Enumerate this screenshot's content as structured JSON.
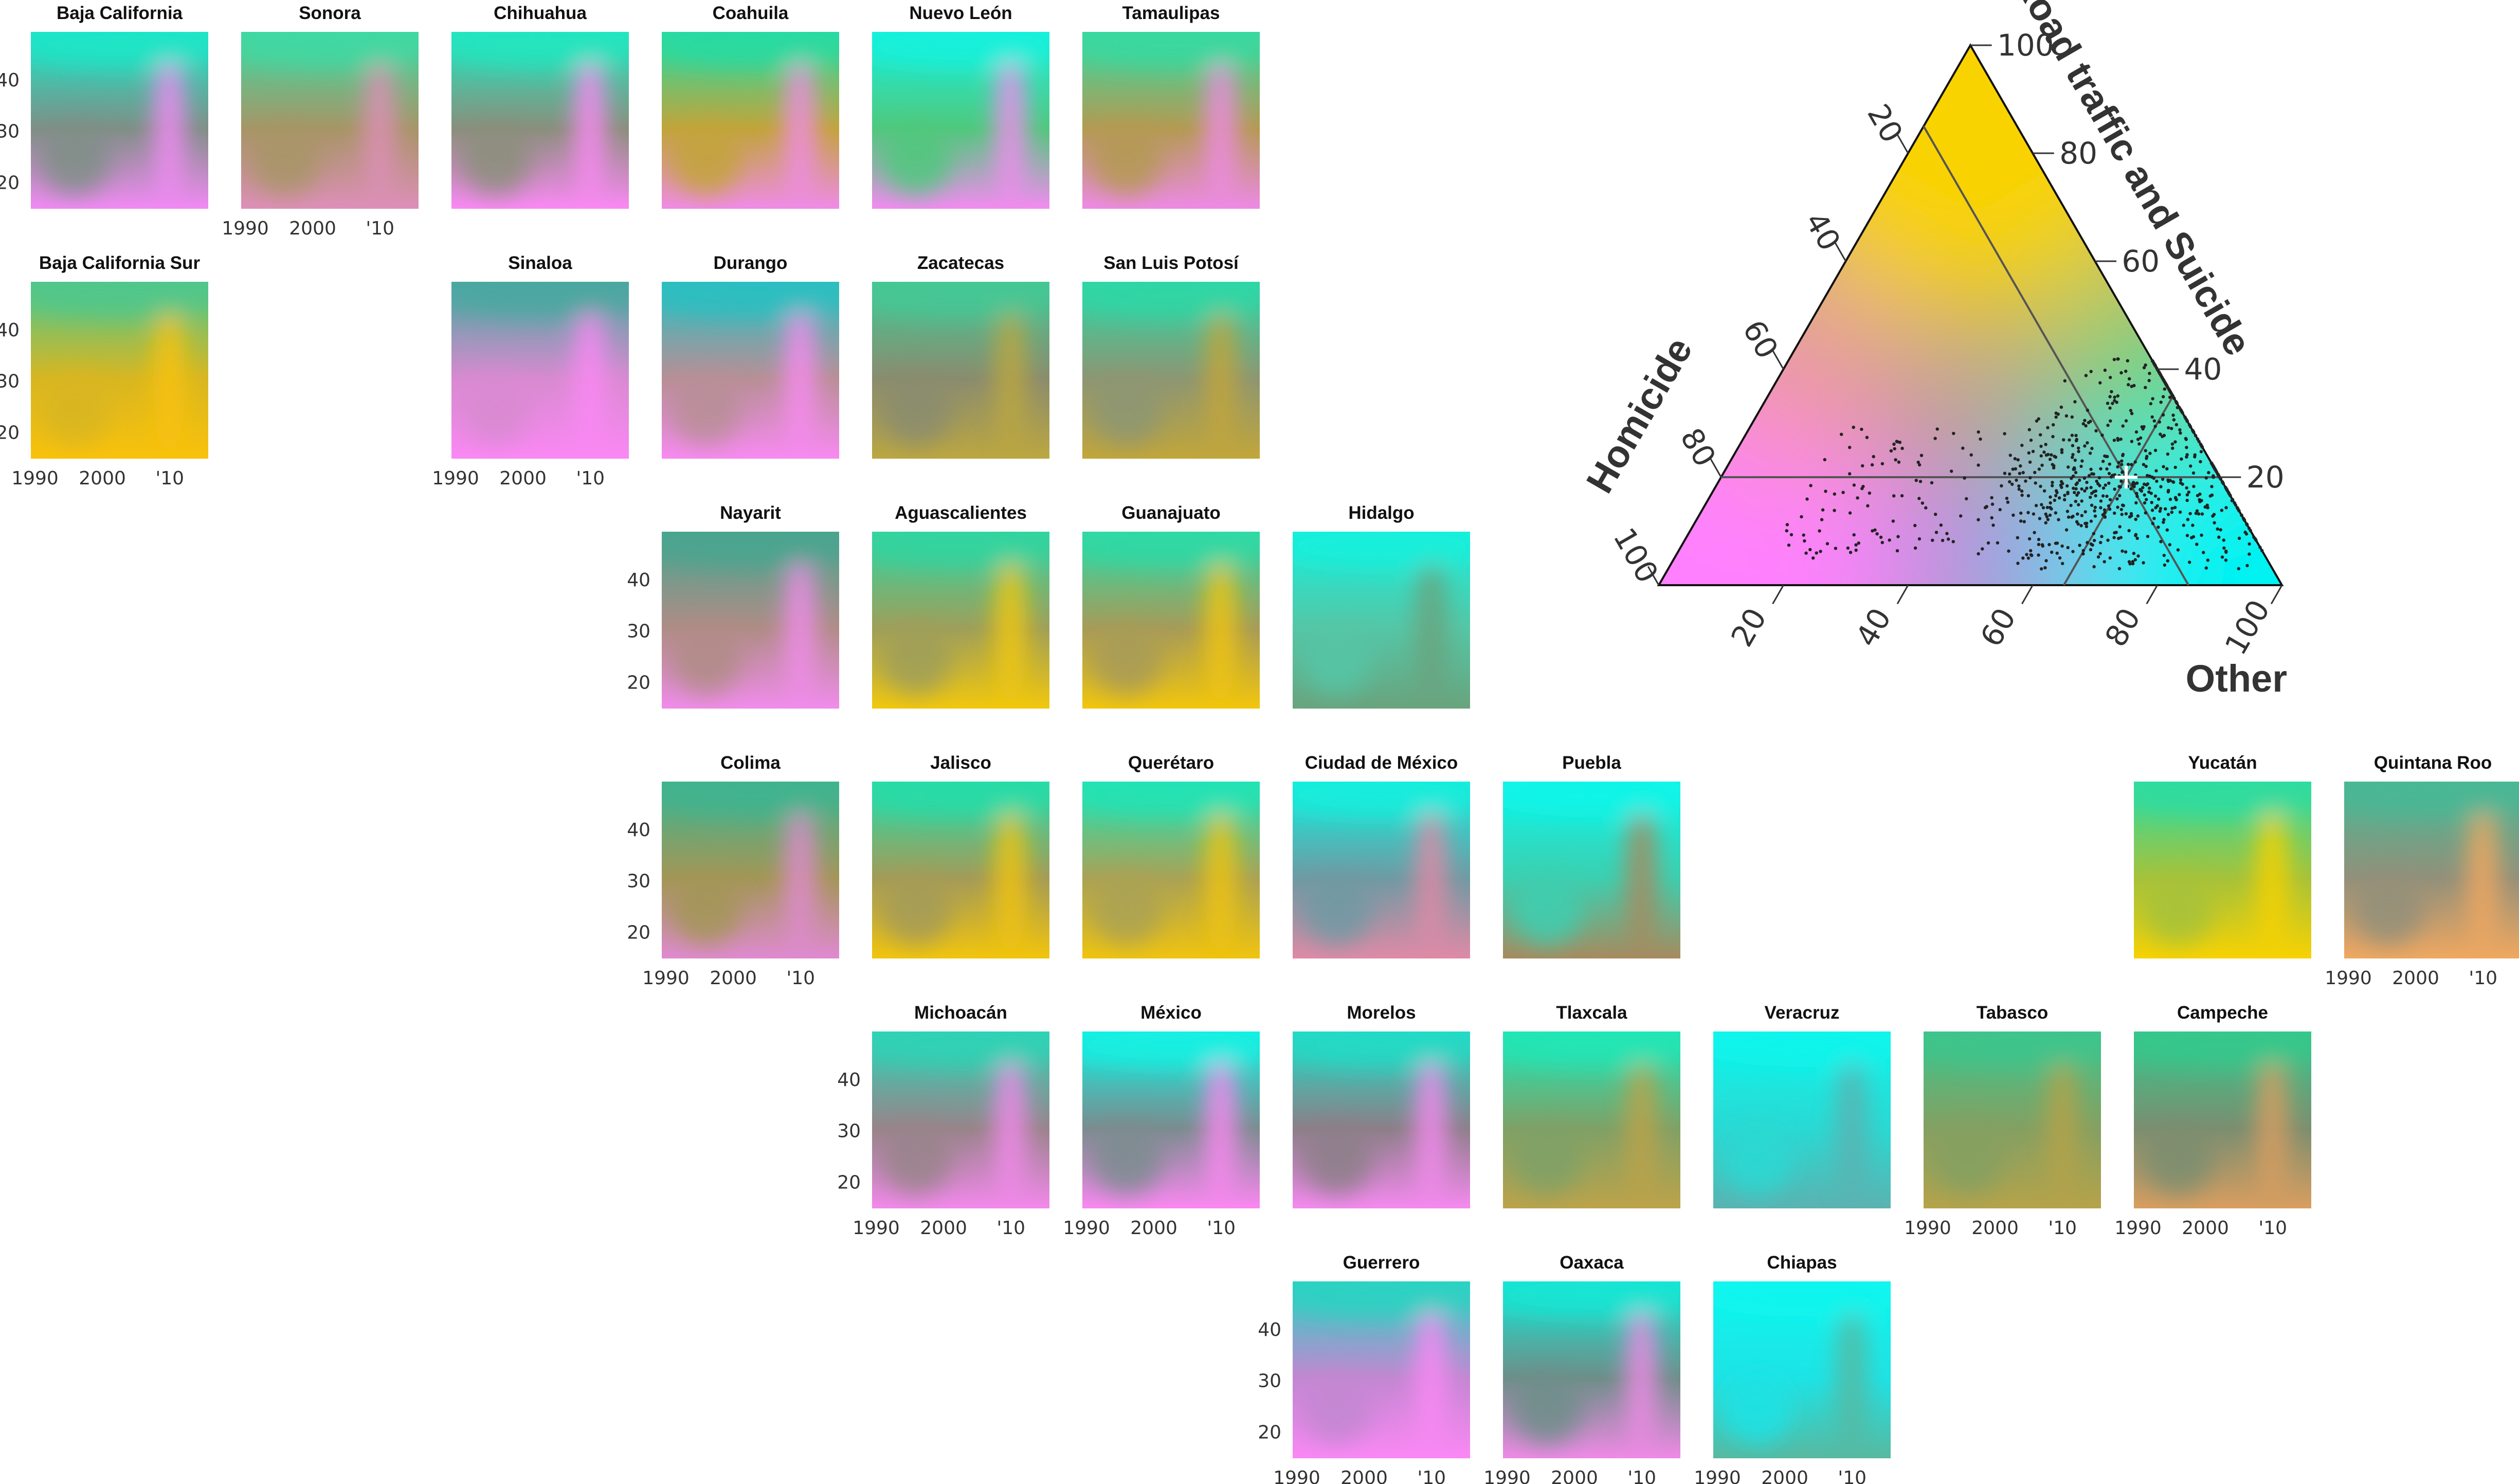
{
  "chart_data": [
    {
      "type": "heatmap",
      "description_of_panels": "Small-multiple tile map of Mexican states; each tile shows a colour field over time (x) and age (y), colour encoding the composition of deaths per the ternary legend.",
      "x_ticks": [
        "1990",
        "2000",
        "'10"
      ],
      "y_ticks": [
        "20",
        "30",
        "40"
      ],
      "xlim": [
        1990,
        2015
      ],
      "ylim": [
        15,
        50
      ],
      "panels": [
        {
          "name": "Baja California",
          "row": 0,
          "col": 0,
          "y_axis": true,
          "x_axis": false,
          "colors": [
            "#1de6c8",
            "#7f8f86",
            "#f28af5"
          ]
        },
        {
          "name": "Sonora",
          "row": 0,
          "col": 1,
          "y_axis": false,
          "x_axis": true,
          "colors": [
            "#3fd9a3",
            "#a79566",
            "#de8fb9"
          ]
        },
        {
          "name": "Chihuahua",
          "row": 0,
          "col": 2,
          "y_axis": false,
          "x_axis": false,
          "colors": [
            "#22e6c0",
            "#8a8f7c",
            "#fb89f5"
          ]
        },
        {
          "name": "Coahuila",
          "row": 0,
          "col": 3,
          "y_axis": false,
          "x_axis": false,
          "colors": [
            "#28dba2",
            "#c2a43a",
            "#f08be8"
          ]
        },
        {
          "name": "Nuevo León",
          "row": 0,
          "col": 4,
          "y_axis": false,
          "x_axis": false,
          "colors": [
            "#17f1dc",
            "#50c87d",
            "#f38bf0"
          ]
        },
        {
          "name": "Tamaulipas",
          "row": 0,
          "col": 5,
          "y_axis": false,
          "x_axis": false,
          "colors": [
            "#38d9a0",
            "#b49a52",
            "#ee8ae6"
          ]
        },
        {
          "name": "Baja California Sur",
          "row": 1,
          "col": 0,
          "y_axis": true,
          "x_axis": true,
          "colors": [
            "#4fc78c",
            "#d8b622",
            "#f9c20c"
          ]
        },
        {
          "name": "Sinaloa",
          "row": 1,
          "col": 2,
          "y_axis": false,
          "x_axis": true,
          "colors": [
            "#4aa8a0",
            "#d88ad0",
            "#fb88f5"
          ]
        },
        {
          "name": "Durango",
          "row": 1,
          "col": 3,
          "y_axis": false,
          "x_axis": false,
          "colors": [
            "#2bbfc1",
            "#b88f96",
            "#f88af2"
          ]
        },
        {
          "name": "Zacatecas",
          "row": 1,
          "col": 4,
          "y_axis": false,
          "x_axis": false,
          "colors": [
            "#44c895",
            "#8a8c6f",
            "#bca740"
          ]
        },
        {
          "name": "San Luis Potosí",
          "row": 1,
          "col": 5,
          "y_axis": false,
          "x_axis": false,
          "colors": [
            "#2ed7a6",
            "#8d9673",
            "#c2a63a"
          ]
        },
        {
          "name": "Nayarit",
          "row": 2,
          "col": 3,
          "y_axis": true,
          "x_axis": false,
          "colors": [
            "#4aa58f",
            "#b08c86",
            "#f18cec"
          ]
        },
        {
          "name": "Aguascalientes",
          "row": 2,
          "col": 4,
          "y_axis": false,
          "x_axis": false,
          "colors": [
            "#33d4a0",
            "#9f9f5a",
            "#f2c80d"
          ]
        },
        {
          "name": "Guanajuato",
          "row": 2,
          "col": 5,
          "y_axis": false,
          "x_axis": false,
          "colors": [
            "#2fd9a5",
            "#a79b58",
            "#f2c60d"
          ]
        },
        {
          "name": "Hidalgo",
          "row": 2,
          "col": 6,
          "y_axis": false,
          "x_axis": false,
          "colors": [
            "#18f0dc",
            "#55c6a6",
            "#6aa37d"
          ]
        },
        {
          "name": "Colima",
          "row": 3,
          "col": 3,
          "y_axis": true,
          "x_axis": true,
          "colors": [
            "#3fb48f",
            "#a39656",
            "#e08ad2"
          ]
        },
        {
          "name": "Jalisco",
          "row": 3,
          "col": 4,
          "y_axis": false,
          "x_axis": false,
          "colors": [
            "#27dca8",
            "#a49b58",
            "#f2c50d"
          ]
        },
        {
          "name": "Querétaro",
          "row": 3,
          "col": 5,
          "y_axis": false,
          "x_axis": false,
          "colors": [
            "#22e3b5",
            "#aaa255",
            "#f0c40f"
          ]
        },
        {
          "name": "Ciudad de México",
          "row": 3,
          "col": 6,
          "y_axis": false,
          "x_axis": false,
          "colors": [
            "#14eedd",
            "#6f9aa3",
            "#e08aa6"
          ]
        },
        {
          "name": "Puebla",
          "row": 3,
          "col": 7,
          "y_axis": false,
          "x_axis": false,
          "colors": [
            "#10f5e8",
            "#3ccfb0",
            "#a88a5e"
          ]
        },
        {
          "name": "Yucatán",
          "row": 3,
          "col": 10,
          "y_axis": false,
          "x_axis": false,
          "colors": [
            "#2fdca0",
            "#a6c23a",
            "#f8d203"
          ]
        },
        {
          "name": "Quintana Roo",
          "row": 3,
          "col": 11,
          "y_axis": false,
          "x_axis": true,
          "colors": [
            "#49b895",
            "#93907a",
            "#f0a860"
          ]
        },
        {
          "name": "Michoacán",
          "row": 4,
          "col": 4,
          "y_axis": true,
          "x_axis": true,
          "colors": [
            "#2fd3b6",
            "#98848a",
            "#f389ec"
          ]
        },
        {
          "name": "México",
          "row": 4,
          "col": 5,
          "y_axis": false,
          "x_axis": true,
          "colors": [
            "#12f1e3",
            "#7b8c8f",
            "#fb88f2"
          ]
        },
        {
          "name": "Morelos",
          "row": 4,
          "col": 6,
          "y_axis": false,
          "x_axis": false,
          "colors": [
            "#22dbc6",
            "#8c7f88",
            "#f58af0"
          ]
        },
        {
          "name": "Tlaxcala",
          "row": 4,
          "col": 7,
          "y_axis": false,
          "x_axis": false,
          "colors": [
            "#20e6b6",
            "#7fa167",
            "#bda34a"
          ]
        },
        {
          "name": "Veracruz",
          "row": 4,
          "col": 8,
          "y_axis": false,
          "x_axis": false,
          "colors": [
            "#0ff5ec",
            "#2ad9d3",
            "#5cb2b0"
          ]
        },
        {
          "name": "Tabasco",
          "row": 4,
          "col": 9,
          "y_axis": false,
          "x_axis": true,
          "colors": [
            "#3ec58c",
            "#84a062",
            "#b6a34a"
          ]
        },
        {
          "name": "Campeche",
          "row": 4,
          "col": 10,
          "y_axis": false,
          "x_axis": true,
          "colors": [
            "#36c88c",
            "#7b8e70",
            "#d99e60"
          ]
        },
        {
          "name": "Guerrero",
          "row": 5,
          "col": 6,
          "y_axis": true,
          "x_axis": true,
          "colors": [
            "#2ad3c2",
            "#c387d1",
            "#fb88f5"
          ]
        },
        {
          "name": "Oaxaca",
          "row": 5,
          "col": 7,
          "y_axis": false,
          "x_axis": true,
          "colors": [
            "#17e6d4",
            "#6e8e89",
            "#f08ae6"
          ]
        },
        {
          "name": "Chiapas",
          "row": 5,
          "col": 8,
          "y_axis": false,
          "x_axis": true,
          "colors": [
            "#10f6ee",
            "#1ee3e5",
            "#59b8a0"
          ]
        }
      ]
    },
    {
      "type": "scatter",
      "subtype": "ternary",
      "axes": [
        {
          "name": "Road traffic and Suicide",
          "ticks": [
            "20",
            "40",
            "60",
            "80",
            "100"
          ],
          "corner_color": "#f9d300"
        },
        {
          "name": "Homicide",
          "ticks": [
            "20",
            "40",
            "60",
            "80",
            "100"
          ],
          "corner_color": "#ff80ff"
        },
        {
          "name": "Other",
          "ticks": [
            "20",
            "40",
            "60",
            "80",
            "100"
          ],
          "corner_color": "#00f2f2"
        }
      ],
      "reference_point": {
        "road_suicide": 20,
        "homicide": 15,
        "other": 65
      },
      "grid_lines_at": 20,
      "points_note": "Roughly 800 state-year-age observations, concentrated around Other 55-85%, Road traffic and Suicide 5-45%."
    }
  ]
}
